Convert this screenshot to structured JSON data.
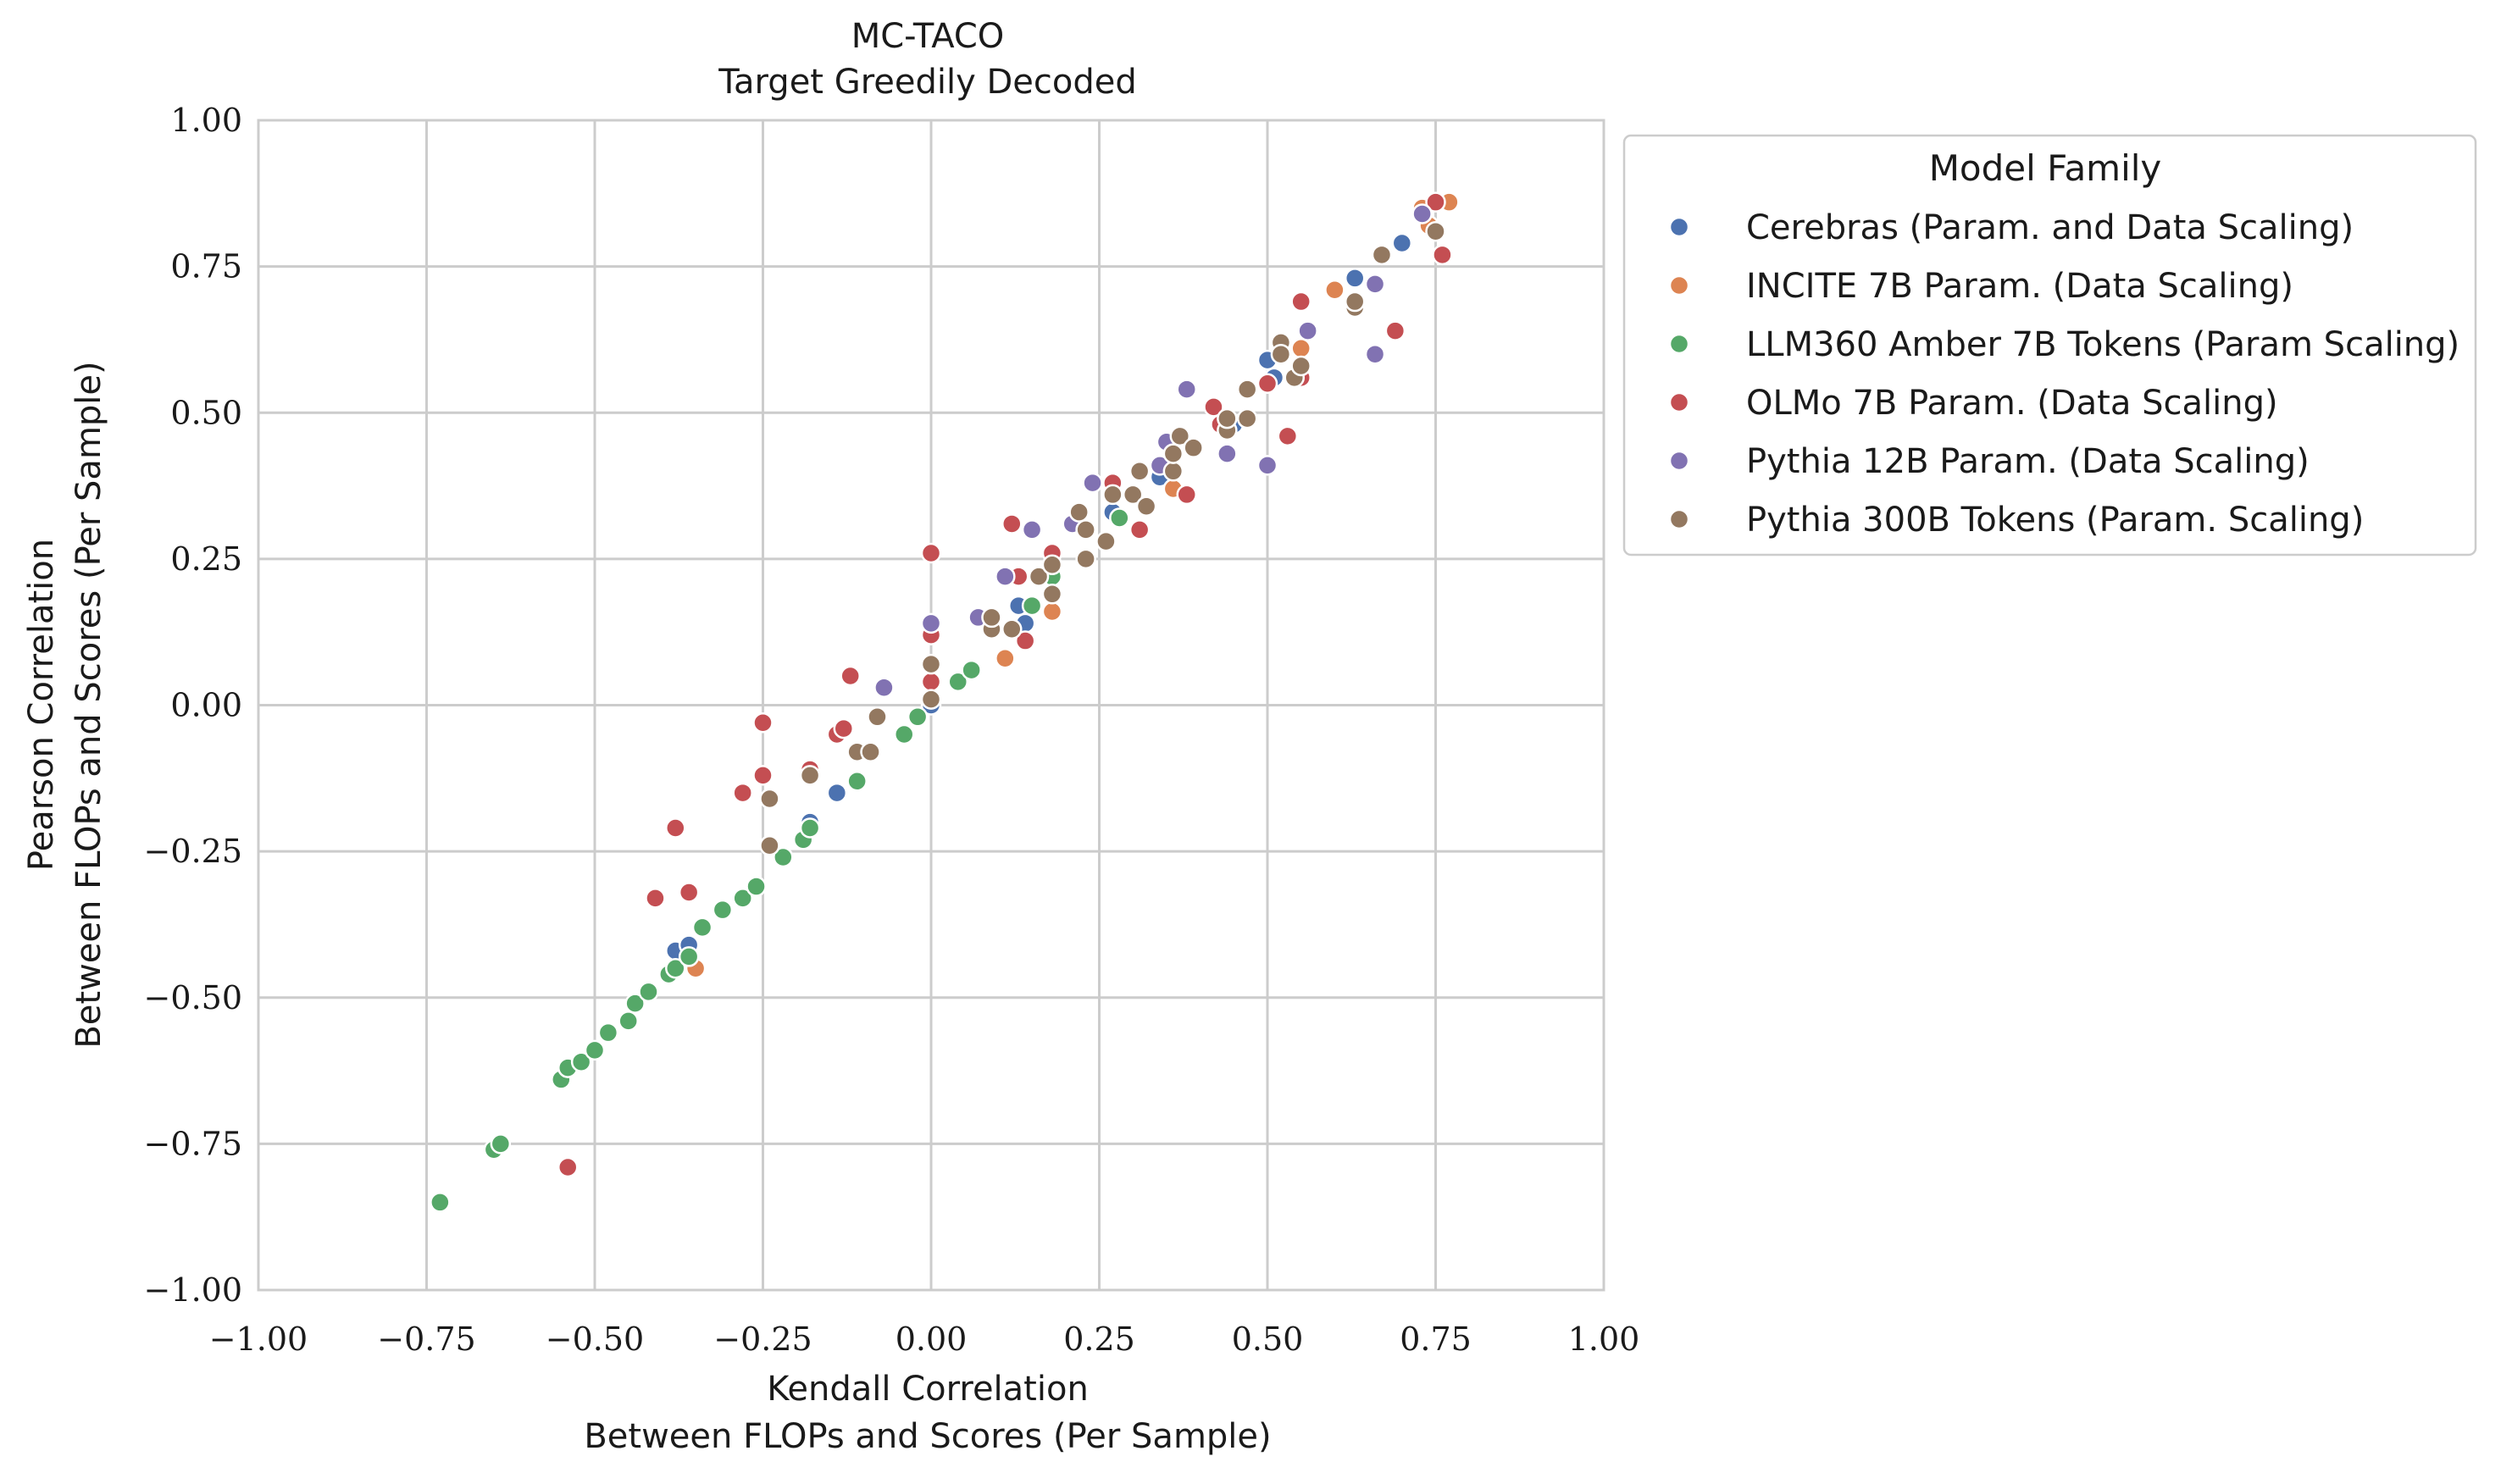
{
  "chart_data": {
    "type": "scatter",
    "title": "MC-TACO",
    "subtitle": "Target Greedily Decoded",
    "xlabel": "Kendall Correlation",
    "xlabel2": "Between FLOPs and Scores (Per Sample)",
    "ylabel": "Pearson Correlation",
    "ylabel2": "Between FLOPs and Scores (Per Sample)",
    "xlim": [
      -1,
      1
    ],
    "ylim": [
      -1,
      1
    ],
    "xticks": [
      -1.0,
      -0.75,
      -0.5,
      -0.25,
      0.0,
      0.25,
      0.5,
      0.75,
      1.0
    ],
    "yticks": [
      -1.0,
      -0.75,
      -0.5,
      -0.25,
      0.0,
      0.25,
      0.5,
      0.75,
      1.0
    ],
    "xtick_labels": [
      "−1.00",
      "−0.75",
      "−0.50",
      "−0.25",
      "0.00",
      "0.25",
      "0.50",
      "0.75",
      "1.00"
    ],
    "ytick_labels": [
      "−1.00",
      "−0.75",
      "−0.50",
      "−0.25",
      "0.00",
      "0.25",
      "0.50",
      "0.75",
      "1.00"
    ],
    "grid": true,
    "legend_title": "Model Family",
    "legend_position": "outside-right-top",
    "series": [
      {
        "name": "Cerebras (Param. and Data Scaling)",
        "color": "#4C72B0",
        "points": [
          [
            -0.38,
            -0.42
          ],
          [
            -0.36,
            -0.41
          ],
          [
            -0.18,
            -0.2
          ],
          [
            -0.14,
            -0.15
          ],
          [
            0.0,
            0.0
          ],
          [
            0.13,
            0.17
          ],
          [
            0.14,
            0.14
          ],
          [
            0.27,
            0.33
          ],
          [
            0.34,
            0.39
          ],
          [
            0.45,
            0.48
          ],
          [
            0.5,
            0.59
          ],
          [
            0.51,
            0.56
          ],
          [
            0.63,
            0.73
          ],
          [
            0.7,
            0.79
          ]
        ]
      },
      {
        "name": "INCITE 7B Param. (Data Scaling)",
        "color": "#DD8452",
        "points": [
          [
            -0.35,
            -0.45
          ],
          [
            0.11,
            0.08
          ],
          [
            0.18,
            0.16
          ],
          [
            0.36,
            0.37
          ],
          [
            0.55,
            0.61
          ],
          [
            0.6,
            0.71
          ],
          [
            0.73,
            0.85
          ],
          [
            0.74,
            0.82
          ],
          [
            0.77,
            0.86
          ]
        ]
      },
      {
        "name": "LLM360 Amber 7B Tokens (Param Scaling)",
        "color": "#55A868",
        "points": [
          [
            -0.73,
            -0.85
          ],
          [
            -0.65,
            -0.76
          ],
          [
            -0.64,
            -0.75
          ],
          [
            -0.55,
            -0.64
          ],
          [
            -0.54,
            -0.62
          ],
          [
            -0.52,
            -0.61
          ],
          [
            -0.5,
            -0.59
          ],
          [
            -0.48,
            -0.56
          ],
          [
            -0.45,
            -0.54
          ],
          [
            -0.44,
            -0.51
          ],
          [
            -0.42,
            -0.49
          ],
          [
            -0.39,
            -0.46
          ],
          [
            -0.38,
            -0.45
          ],
          [
            -0.36,
            -0.43
          ],
          [
            -0.34,
            -0.38
          ],
          [
            -0.31,
            -0.35
          ],
          [
            -0.28,
            -0.33
          ],
          [
            -0.26,
            -0.31
          ],
          [
            -0.22,
            -0.26
          ],
          [
            -0.19,
            -0.23
          ],
          [
            -0.18,
            -0.21
          ],
          [
            -0.11,
            -0.13
          ],
          [
            -0.04,
            -0.05
          ],
          [
            -0.02,
            -0.02
          ],
          [
            0.04,
            0.04
          ],
          [
            0.06,
            0.06
          ],
          [
            0.15,
            0.17
          ],
          [
            0.18,
            0.22
          ],
          [
            0.28,
            0.32
          ]
        ]
      },
      {
        "name": "OLMo 7B Param. (Data Scaling)",
        "color": "#C44E52",
        "points": [
          [
            -0.54,
            -0.79
          ],
          [
            -0.41,
            -0.33
          ],
          [
            -0.38,
            -0.21
          ],
          [
            -0.36,
            -0.32
          ],
          [
            -0.28,
            -0.15
          ],
          [
            -0.25,
            -0.12
          ],
          [
            -0.25,
            -0.03
          ],
          [
            -0.18,
            -0.11
          ],
          [
            -0.14,
            -0.05
          ],
          [
            -0.13,
            -0.04
          ],
          [
            -0.12,
            0.05
          ],
          [
            0.0,
            0.04
          ],
          [
            0.0,
            0.12
          ],
          [
            0.0,
            0.26
          ],
          [
            0.12,
            0.31
          ],
          [
            0.13,
            0.22
          ],
          [
            0.14,
            0.11
          ],
          [
            0.18,
            0.26
          ],
          [
            0.27,
            0.38
          ],
          [
            0.31,
            0.3
          ],
          [
            0.38,
            0.36
          ],
          [
            0.42,
            0.51
          ],
          [
            0.43,
            0.48
          ],
          [
            0.5,
            0.55
          ],
          [
            0.53,
            0.46
          ],
          [
            0.55,
            0.56
          ],
          [
            0.55,
            0.69
          ],
          [
            0.69,
            0.64
          ],
          [
            0.75,
            0.86
          ],
          [
            0.76,
            0.77
          ]
        ]
      },
      {
        "name": "Pythia 12B Param. (Data Scaling)",
        "color": "#8172B2",
        "points": [
          [
            -0.07,
            0.03
          ],
          [
            0.0,
            0.14
          ],
          [
            0.07,
            0.15
          ],
          [
            0.11,
            0.22
          ],
          [
            0.15,
            0.3
          ],
          [
            0.21,
            0.31
          ],
          [
            0.24,
            0.38
          ],
          [
            0.34,
            0.41
          ],
          [
            0.35,
            0.45
          ],
          [
            0.38,
            0.54
          ],
          [
            0.44,
            0.43
          ],
          [
            0.5,
            0.41
          ],
          [
            0.56,
            0.64
          ],
          [
            0.66,
            0.6
          ],
          [
            0.66,
            0.72
          ],
          [
            0.73,
            0.84
          ]
        ]
      },
      {
        "name": "Pythia 300B Tokens (Param. Scaling)",
        "color": "#937860",
        "points": [
          [
            -0.24,
            -0.16
          ],
          [
            -0.24,
            -0.24
          ],
          [
            -0.18,
            -0.12
          ],
          [
            -0.11,
            -0.08
          ],
          [
            -0.09,
            -0.08
          ],
          [
            -0.08,
            -0.02
          ],
          [
            0.0,
            0.01
          ],
          [
            0.0,
            0.07
          ],
          [
            0.09,
            0.13
          ],
          [
            0.09,
            0.15
          ],
          [
            0.12,
            0.13
          ],
          [
            0.16,
            0.22
          ],
          [
            0.18,
            0.24
          ],
          [
            0.18,
            0.19
          ],
          [
            0.22,
            0.33
          ],
          [
            0.23,
            0.3
          ],
          [
            0.23,
            0.25
          ],
          [
            0.26,
            0.28
          ],
          [
            0.27,
            0.36
          ],
          [
            0.3,
            0.36
          ],
          [
            0.31,
            0.4
          ],
          [
            0.32,
            0.34
          ],
          [
            0.36,
            0.4
          ],
          [
            0.36,
            0.43
          ],
          [
            0.37,
            0.46
          ],
          [
            0.39,
            0.44
          ],
          [
            0.44,
            0.47
          ],
          [
            0.44,
            0.49
          ],
          [
            0.47,
            0.49
          ],
          [
            0.47,
            0.54
          ],
          [
            0.52,
            0.62
          ],
          [
            0.52,
            0.6
          ],
          [
            0.54,
            0.56
          ],
          [
            0.55,
            0.58
          ],
          [
            0.63,
            0.68
          ],
          [
            0.63,
            0.69
          ],
          [
            0.67,
            0.77
          ],
          [
            0.75,
            0.81
          ]
        ]
      }
    ]
  }
}
